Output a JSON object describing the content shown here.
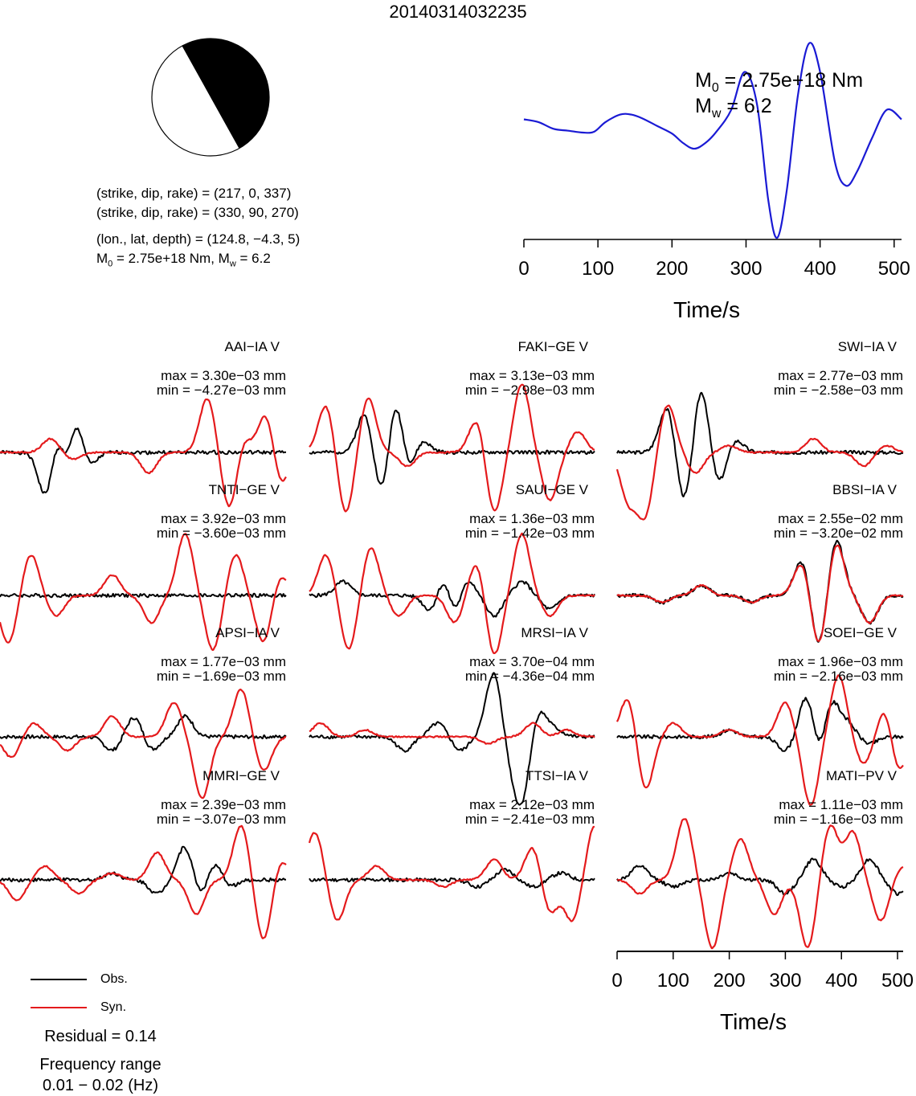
{
  "event_id": "20140314032235",
  "focal": {
    "line1": "(strike, dip, rake) = (217, 0, 337)",
    "line2": "(strike, dip, rake) = (330, 90, 270)",
    "line3": "(lon., lat, depth) = (124.8, −4.3, 5)",
    "m0_text": "2.75e+18 Nm, M",
    "mw_value": " = 6.2",
    "m0_prefix": "M",
    "sub0": "0",
    "subw": "w"
  },
  "stf": {
    "m0_label": "M",
    "m0_sub": "0",
    "m0_value": " = 2.75e+18 Nm",
    "mw_label": "M",
    "mw_sub": "w",
    "mw_value": " = 6.2"
  },
  "legend": {
    "obs": "Obs.",
    "syn": "Syn."
  },
  "residual": "Residual = 0.14",
  "freq_line1": "Frequency range",
  "freq_line2": "0.01 − 0.02 (Hz)",
  "time_axis_label": "Time/s",
  "colors": {
    "obs": "#000000",
    "syn": "#e41a1c",
    "stf": "#1a1ad4"
  },
  "chart_data": [
    {
      "type": "line",
      "name": "source-time-function",
      "x": [
        0,
        20,
        40,
        60,
        80,
        95,
        110,
        130,
        145,
        160,
        180,
        200,
        215,
        230,
        245,
        260,
        280,
        298,
        315,
        330,
        342,
        355,
        370,
        385,
        400,
        420,
        435,
        450,
        470,
        490,
        510
      ],
      "y": [
        0.25,
        0.22,
        0.15,
        0.13,
        0.11,
        0.12,
        0.22,
        0.3,
        0.3,
        0.26,
        0.18,
        0.1,
        0.0,
        -0.06,
        0.0,
        0.12,
        0.35,
        0.75,
        0.4,
        -0.6,
        -1.0,
        -0.5,
        0.5,
        1.05,
        0.75,
        -0.2,
        -0.45,
        -0.3,
        0.05,
        0.35,
        0.25
      ],
      "xlim": [
        0,
        510
      ],
      "xticks": [
        0,
        100,
        200,
        300,
        400,
        500
      ],
      "xlabel": "Time/s"
    },
    {
      "type": "line",
      "name": "waveform-comparison",
      "xlim": [
        0,
        510
      ],
      "xticks": [
        0,
        100,
        200,
        300,
        400,
        500
      ],
      "xlabel": "Time/s",
      "series_names": [
        "Obs.",
        "Syn."
      ],
      "stations": [
        {
          "label": "AAI−IA V",
          "max": "max = 3.30e−03 mm",
          "min": "min = −4.27e−03 mm",
          "seed": 1,
          "obs_peaks": [
            [
              85,
              -0.9
            ],
            [
              100,
              0.7
            ],
            [
              120,
              -0.6
            ],
            [
              135,
              0.75
            ],
            [
              155,
              -0.3
            ]
          ],
          "syn_peaks": [
            [
              90,
              0.2
            ],
            [
              130,
              -0.1
            ],
            [
              265,
              -0.3
            ],
            [
              370,
              0.8
            ],
            [
              410,
              -0.9
            ],
            [
              430,
              0.3
            ],
            [
              475,
              0.6
            ],
            [
              500,
              -0.5
            ]
          ]
        },
        {
          "label": "FAKI−GE V",
          "max": "max = 3.13e−03 mm",
          "min": "min = −2.98e−03 mm",
          "seed": 2,
          "obs_peaks": [
            [
              100,
              0.6
            ],
            [
              130,
              -0.7
            ],
            [
              155,
              0.9
            ],
            [
              175,
              -0.4
            ],
            [
              200,
              0.2
            ]
          ],
          "syn_peaks": [
            [
              30,
              0.7
            ],
            [
              65,
              -0.9
            ],
            [
              105,
              0.8
            ],
            [
              175,
              -0.2
            ],
            [
              300,
              0.5
            ],
            [
              330,
              -0.9
            ],
            [
              380,
              1.0
            ],
            [
              430,
              -0.7
            ],
            [
              480,
              0.3
            ]
          ]
        },
        {
          "label": "SWI−IA V",
          "max": "max = 2.77e−03 mm",
          "min": "min = −2.58e−03 mm",
          "seed": 3,
          "obs_peaks": [
            [
              90,
              0.7
            ],
            [
              120,
              -0.8
            ],
            [
              150,
              1.0
            ],
            [
              180,
              -0.5
            ],
            [
              210,
              0.2
            ]
          ],
          "syn_peaks": [
            [
              20,
              -0.7
            ],
            [
              50,
              -0.9
            ],
            [
              90,
              0.7
            ],
            [
              140,
              -0.3
            ],
            [
              200,
              0.1
            ],
            [
              350,
              0.2
            ],
            [
              440,
              -0.2
            ],
            [
              480,
              0.1
            ]
          ]
        },
        {
          "label": "TNTI−GE V",
          "max": "max = 3.92e−03 mm",
          "min": "min = −3.60e−03 mm",
          "seed": 4,
          "obs_peaks": [],
          "syn_peaks": [
            [
              15,
              -0.7
            ],
            [
              55,
              0.6
            ],
            [
              100,
              -0.3
            ],
            [
              200,
              0.3
            ],
            [
              270,
              -0.4
            ],
            [
              330,
              0.9
            ],
            [
              380,
              -0.8
            ],
            [
              420,
              0.6
            ],
            [
              470,
              -0.7
            ],
            [
              500,
              0.3
            ]
          ]
        },
        {
          "label": "SAUI−GE V",
          "max": "max = 1.36e−03 mm",
          "min": "min = −1.42e−03 mm",
          "seed": 5,
          "obs_peaks": [
            [
              60,
              0.2
            ],
            [
              220,
              -0.3
            ],
            [
              240,
              0.4
            ],
            [
              260,
              -0.4
            ],
            [
              280,
              0.3
            ],
            [
              330,
              -0.3
            ],
            [
              380,
              0.2
            ],
            [
              430,
              -0.2
            ]
          ],
          "syn_peaks": [
            [
              30,
              0.6
            ],
            [
              70,
              -0.8
            ],
            [
              110,
              0.7
            ],
            [
              160,
              -0.3
            ],
            [
              260,
              -0.4
            ],
            [
              300,
              0.5
            ],
            [
              330,
              -0.9
            ],
            [
              380,
              0.9
            ],
            [
              430,
              -0.3
            ]
          ]
        },
        {
          "label": "BBSI−IA V",
          "max": "max = 2.55e−02 mm",
          "min": "min = −3.20e−02 mm",
          "seed": 6,
          "obs_peaks": [
            [
              80,
              -0.1
            ],
            [
              150,
              0.15
            ],
            [
              240,
              -0.1
            ],
            [
              330,
              0.55
            ],
            [
              360,
              -0.8
            ],
            [
              390,
              0.85
            ],
            [
              420,
              0.0
            ],
            [
              450,
              -0.4
            ]
          ],
          "syn_peaks": [
            [
              80,
              -0.1
            ],
            [
              150,
              0.15
            ],
            [
              240,
              -0.1
            ],
            [
              330,
              0.5
            ],
            [
              360,
              -0.8
            ],
            [
              390,
              0.8
            ],
            [
              420,
              0.0
            ],
            [
              450,
              -0.4
            ]
          ]
        },
        {
          "label": "APSI−IA V",
          "max": "max = 1.77e−03 mm",
          "min": "min = −1.69e−03 mm",
          "seed": 7,
          "obs_peaks": [
            [
              200,
              -0.2
            ],
            [
              240,
              0.3
            ],
            [
              270,
              -0.2
            ],
            [
              330,
              0.3
            ]
          ],
          "syn_peaks": [
            [
              20,
              -0.3
            ],
            [
              60,
              0.2
            ],
            [
              120,
              -0.2
            ],
            [
              200,
              0.3
            ],
            [
              310,
              0.5
            ],
            [
              360,
              -0.9
            ],
            [
              430,
              0.7
            ],
            [
              470,
              -0.5
            ]
          ]
        },
        {
          "label": "MRSI−IA V",
          "max": "max = 3.70e−04 mm",
          "min": "min = −4.36e−04 mm",
          "seed": 8,
          "obs_peaks": [
            [
              170,
              -0.2
            ],
            [
              230,
              0.2
            ],
            [
              270,
              -0.2
            ],
            [
              330,
              0.95
            ],
            [
              360,
              -0.3
            ],
            [
              380,
              -0.9
            ],
            [
              410,
              0.4
            ],
            [
              440,
              0.1
            ]
          ],
          "syn_peaks": [
            [
              20,
              0.2
            ],
            [
              100,
              0.1
            ],
            [
              320,
              -0.1
            ],
            [
              400,
              0.2
            ],
            [
              460,
              0.1
            ]
          ]
        },
        {
          "label": "SOEI−GE V",
          "max": "max = 1.96e−03 mm",
          "min": "min = −2.16e−03 mm",
          "seed": 9,
          "obs_peaks": [
            [
              200,
              0.1
            ],
            [
              300,
              -0.2
            ],
            [
              340,
              0.7
            ],
            [
              360,
              -0.5
            ],
            [
              380,
              0.6
            ],
            [
              410,
              0.2
            ],
            [
              450,
              -0.1
            ]
          ],
          "syn_peaks": [
            [
              20,
              0.6
            ],
            [
              50,
              -0.8
            ],
            [
              100,
              0.2
            ],
            [
              200,
              0.1
            ],
            [
              300,
              0.5
            ],
            [
              345,
              -1.0
            ],
            [
              395,
              0.9
            ],
            [
              440,
              -0.4
            ],
            [
              480,
              0.5
            ],
            [
              500,
              -0.6
            ]
          ]
        },
        {
          "label": "MMRI−GE V",
          "max": "max = 2.39e−03 mm",
          "min": "min = −3.07e−03 mm",
          "seed": 10,
          "obs_peaks": [
            [
              200,
              0.1
            ],
            [
              280,
              -0.2
            ],
            [
              330,
              0.5
            ],
            [
              360,
              -0.3
            ],
            [
              380,
              0.3
            ],
            [
              410,
              -0.1
            ]
          ],
          "syn_peaks": [
            [
              30,
              -0.3
            ],
            [
              80,
              0.2
            ],
            [
              140,
              -0.2
            ],
            [
              200,
              0.1
            ],
            [
              280,
              0.4
            ],
            [
              350,
              -0.5
            ],
            [
              430,
              0.8
            ],
            [
              470,
              -0.9
            ],
            [
              500,
              0.3
            ]
          ]
        },
        {
          "label": "TTSI−IA V",
          "max": "max = 2.12e−03 mm",
          "min": "min = −2.41e−03 mm",
          "seed": 11,
          "obs_peaks": [
            [
              300,
              -0.1
            ],
            [
              350,
              0.15
            ],
            [
              400,
              -0.1
            ],
            [
              450,
              0.1
            ]
          ],
          "syn_peaks": [
            [
              10,
              0.7
            ],
            [
              50,
              -0.6
            ],
            [
              120,
              0.2
            ],
            [
              240,
              -0.1
            ],
            [
              330,
              0.3
            ],
            [
              400,
              0.5
            ],
            [
              430,
              -0.5
            ],
            [
              470,
              -0.6
            ],
            [
              510,
              0.8
            ]
          ]
        },
        {
          "label": "MATI−PV V",
          "max": "max = 1.11e−03 mm",
          "min": "min = −1.16e−03 mm",
          "seed": 12,
          "obs_peaks": [
            [
              40,
              0.2
            ],
            [
              100,
              -0.1
            ],
            [
              200,
              0.1
            ],
            [
              300,
              -0.2
            ],
            [
              350,
              0.3
            ],
            [
              400,
              -0.1
            ],
            [
              450,
              0.3
            ],
            [
              500,
              -0.2
            ]
          ],
          "syn_peaks": [
            [
              40,
              -0.2
            ],
            [
              120,
              0.9
            ],
            [
              170,
              -1.0
            ],
            [
              220,
              0.6
            ],
            [
              280,
              -0.5
            ],
            [
              340,
              -1.0
            ],
            [
              380,
              0.8
            ],
            [
              420,
              0.7
            ],
            [
              470,
              -0.6
            ],
            [
              510,
              0.2
            ]
          ]
        }
      ]
    }
  ]
}
